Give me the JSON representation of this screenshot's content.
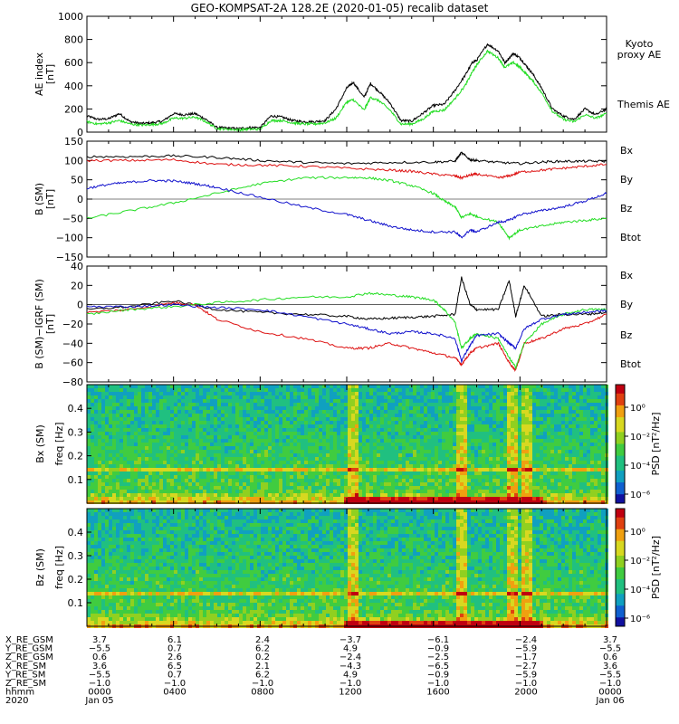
{
  "title": "GEO-KOMPSAT-2A 128.2E (2020-01-05) recalib dataset",
  "colors": {
    "black": "#000000",
    "green": "#22dd22",
    "red": "#dd1111",
    "blue": "#1111cc"
  },
  "chart_data": [
    {
      "type": "line",
      "id": "ae",
      "ylabel": [
        "AE index",
        "[nT]"
      ],
      "ylim": [
        0,
        1000
      ],
      "yticks": [
        "0",
        "200",
        "400",
        "600",
        "800",
        "1000"
      ],
      "legend": {
        "kyoto": [
          "Kyoto",
          "proxy AE"
        ],
        "themis": "Themis AE"
      },
      "xlim": [
        0,
        24
      ],
      "series": [
        {
          "name": "Themis AE",
          "color": "black",
          "x": [
            0,
            0.5,
            1,
            1.5,
            2,
            2.5,
            3,
            3.5,
            4,
            4.5,
            5,
            5.5,
            6,
            6.5,
            7,
            7.5,
            8,
            8.5,
            9,
            9.5,
            10,
            10.5,
            11,
            11.5,
            12,
            12.3,
            12.8,
            13.1,
            13.5,
            14,
            14.5,
            15,
            15.5,
            16,
            16.5,
            17,
            17.5,
            17.8,
            18,
            18.5,
            19,
            19.3,
            19.7,
            20,
            20.3,
            20.6,
            21,
            21.5,
            22,
            22.5,
            23,
            23.5,
            24
          ],
          "y": [
            140,
            110,
            115,
            160,
            90,
            75,
            80,
            95,
            160,
            150,
            160,
            110,
            40,
            35,
            30,
            40,
            40,
            140,
            130,
            100,
            90,
            90,
            100,
            200,
            380,
            430,
            300,
            420,
            350,
            250,
            100,
            95,
            160,
            230,
            240,
            360,
            500,
            600,
            620,
            760,
            700,
            600,
            680,
            640,
            570,
            500,
            380,
            200,
            140,
            110,
            200,
            150,
            200
          ]
        },
        {
          "name": "Kyoto proxy AE",
          "color": "green",
          "x": [
            0,
            0.5,
            1,
            1.5,
            2,
            2.5,
            3,
            3.5,
            4,
            4.5,
            5,
            5.5,
            6,
            6.5,
            7,
            7.5,
            8,
            8.5,
            9,
            9.5,
            10,
            10.5,
            11,
            11.5,
            12,
            12.3,
            12.8,
            13.1,
            13.5,
            14,
            14.5,
            15,
            15.5,
            16,
            16.5,
            17,
            17.5,
            17.8,
            18,
            18.5,
            19,
            19.3,
            19.7,
            20,
            20.3,
            20.6,
            21,
            21.5,
            22,
            22.5,
            23,
            23.5,
            24
          ],
          "y": [
            90,
            70,
            80,
            100,
            70,
            60,
            65,
            75,
            120,
            120,
            130,
            90,
            30,
            25,
            20,
            25,
            25,
            100,
            100,
            80,
            70,
            70,
            80,
            120,
            260,
            280,
            190,
            300,
            270,
            190,
            70,
            70,
            110,
            180,
            190,
            290,
            410,
            520,
            580,
            700,
            640,
            560,
            600,
            560,
            500,
            440,
            340,
            180,
            110,
            90,
            150,
            120,
            160
          ]
        }
      ]
    },
    {
      "type": "line",
      "id": "bsm",
      "ylabel": [
        "B (SM)",
        "[nT]"
      ],
      "ylim": [
        -150,
        150
      ],
      "yticks": [
        "−150",
        "−100",
        "−50",
        "0",
        "50",
        "100",
        "150"
      ],
      "legend": [
        "Bx",
        "By",
        "Bz",
        "Btot"
      ],
      "xlim": [
        0,
        24
      ],
      "series": [
        {
          "name": "Btot",
          "color": "black",
          "x": [
            0,
            2,
            4,
            6,
            8,
            10,
            12,
            14,
            16,
            17,
            17.3,
            17.7,
            18,
            19,
            20,
            21,
            22,
            23,
            24
          ],
          "y": [
            110,
            110,
            112,
            108,
            100,
            95,
            92,
            95,
            96,
            98,
            120,
            102,
            100,
            95,
            92,
            96,
            98,
            98,
            98
          ]
        },
        {
          "name": "Bz",
          "color": "red",
          "x": [
            0,
            2,
            4,
            6,
            8,
            10,
            12,
            14,
            15,
            16,
            17,
            17.3,
            17.7,
            18,
            19,
            19.5,
            20,
            21,
            22,
            23,
            24
          ],
          "y": [
            100,
            100,
            102,
            90,
            88,
            85,
            80,
            75,
            72,
            65,
            60,
            55,
            62,
            65,
            55,
            60,
            70,
            75,
            80,
            85,
            90
          ]
        },
        {
          "name": "By",
          "color": "green",
          "x": [
            0,
            2,
            4,
            6,
            8,
            10,
            12,
            13,
            14,
            15,
            16,
            16.5,
            17,
            17.3,
            17.7,
            18,
            19,
            19.5,
            20,
            21,
            22,
            23,
            24
          ],
          "y": [
            -50,
            -30,
            -10,
            15,
            40,
            55,
            56,
            55,
            48,
            35,
            15,
            -5,
            -20,
            -48,
            -38,
            -45,
            -60,
            -100,
            -80,
            -70,
            -60,
            -55,
            -50
          ]
        },
        {
          "name": "Bx",
          "color": "blue",
          "x": [
            0,
            1,
            2,
            3,
            4,
            5,
            6,
            8,
            10,
            12,
            13,
            14,
            15,
            16,
            17,
            17.3,
            17.7,
            18,
            19,
            19.5,
            20,
            21,
            22,
            23,
            24
          ],
          "y": [
            28,
            38,
            44,
            48,
            47,
            40,
            30,
            5,
            -20,
            -40,
            -55,
            -70,
            -80,
            -85,
            -85,
            -100,
            -80,
            -85,
            -60,
            -55,
            -40,
            -30,
            -20,
            -5,
            15
          ]
        }
      ]
    },
    {
      "type": "line",
      "id": "bigrf",
      "ylabel": [
        "B (SM)−IGRF (SM)",
        "[nT]"
      ],
      "ylim": [
        -80,
        40
      ],
      "yticks": [
        "−80",
        "−60",
        "−40",
        "−20",
        "0",
        "20",
        "40"
      ],
      "legend": [
        "Bx",
        "By",
        "Bz",
        "Btot"
      ],
      "xlim": [
        0,
        24
      ],
      "series": [
        {
          "name": "Btot",
          "color": "black",
          "x": [
            0,
            2,
            4,
            6,
            8,
            10,
            12,
            13,
            14,
            15,
            16,
            17,
            17.3,
            17.7,
            18,
            19,
            19.5,
            19.8,
            20.2,
            21,
            22,
            23,
            24
          ],
          "y": [
            -5,
            -2,
            4,
            -5,
            -8,
            -10,
            -12,
            -15,
            -14,
            -13,
            -12,
            -10,
            28,
            0,
            -5,
            -5,
            25,
            -12,
            20,
            -12,
            -10,
            -10,
            -8
          ]
        },
        {
          "name": "Bz",
          "color": "red",
          "x": [
            0,
            2,
            4,
            5,
            6,
            8,
            10,
            12,
            13,
            14,
            15,
            16,
            17,
            17.3,
            17.7,
            18,
            19,
            19.5,
            19.8,
            20.2,
            21,
            22,
            23,
            24
          ],
          "y": [
            -8,
            -5,
            2,
            0,
            -15,
            -28,
            -35,
            -45,
            -45,
            -40,
            -45,
            -50,
            -55,
            -62,
            -50,
            -45,
            -40,
            -60,
            -68,
            -40,
            -35,
            -25,
            -20,
            -10
          ]
        },
        {
          "name": "By",
          "color": "green",
          "x": [
            0,
            2,
            4,
            6,
            8,
            10,
            12,
            13,
            14,
            15,
            16,
            16.5,
            17,
            17.3,
            17.7,
            18,
            19,
            19.5,
            19.8,
            20.2,
            21,
            22,
            23,
            24
          ],
          "y": [
            -10,
            -5,
            -2,
            2,
            5,
            8,
            8,
            12,
            10,
            8,
            5,
            -5,
            -18,
            -45,
            -35,
            -30,
            -35,
            -55,
            -65,
            -40,
            -20,
            -10,
            -5,
            -5
          ]
        },
        {
          "name": "Bx",
          "color": "blue",
          "x": [
            0,
            2,
            4,
            6,
            8,
            10,
            12,
            13,
            14,
            15,
            16,
            17,
            17.3,
            17.7,
            18,
            19,
            19.5,
            19.8,
            20.2,
            21,
            22,
            23,
            24
          ],
          "y": [
            -2,
            -2,
            0,
            -3,
            -5,
            -12,
            -20,
            -25,
            -30,
            -28,
            -30,
            -35,
            -58,
            -42,
            -32,
            -30,
            -40,
            -45,
            -25,
            -15,
            -10,
            -8,
            -6
          ]
        }
      ]
    },
    {
      "type": "heatmap",
      "id": "bxspec",
      "ylabel": [
        "Bx (SM)",
        "freq [Hz]"
      ],
      "ylim": [
        0,
        0.5
      ],
      "yticks": [
        "0.1",
        "0.2",
        "0.3",
        "0.4"
      ],
      "colorbar": {
        "label": "PSD [nT²/Hz]",
        "ticks": [
          "10⁰",
          "10⁻²",
          "10⁻⁴",
          "10⁻⁶"
        ]
      },
      "bands": [
        0.15,
        0.17
      ],
      "bursts": [
        12.2,
        17.3,
        19.6,
        20.2
      ]
    },
    {
      "type": "heatmap",
      "id": "bzspec",
      "ylabel": [
        "Bz (SM)",
        "freq [Hz]"
      ],
      "ylim": [
        0,
        0.5
      ],
      "yticks": [
        "0.1",
        "0.2",
        "0.3",
        "0.4"
      ],
      "colorbar": {
        "label": "PSD [nT²/Hz]",
        "ticks": [
          "10⁰",
          "10⁻²",
          "10⁻⁴",
          "10⁻⁶"
        ]
      },
      "bands": [
        0.15,
        0.17
      ],
      "bursts": [
        12.2,
        17.3,
        19.6,
        20.2
      ]
    }
  ],
  "orbit_table": {
    "row_labels": [
      "X_RE_GSM",
      "Y_RE_GSM",
      "Z_RE_GSM",
      "X_RE_SM",
      "Y_RE_SM",
      "Z_RE_SM",
      "hhmm",
      "2020"
    ],
    "rows": [
      [
        "3.7",
        "6.1",
        "2.4",
        "−3.7",
        "−6.1",
        "−2.4",
        "3.7"
      ],
      [
        "−5.5",
        "0.7",
        "6.2",
        "4.9",
        "−0.9",
        "−5.9",
        "−5.5"
      ],
      [
        "0.6",
        "2.6",
        "0.2",
        "−2.4",
        "−2.5",
        "−1.7",
        "0.6"
      ],
      [
        "3.6",
        "6.5",
        "2.1",
        "−4.3",
        "−6.5",
        "−2.7",
        "3.6"
      ],
      [
        "−5.5",
        "0.7",
        "6.2",
        "4.9",
        "−0.9",
        "−5.9",
        "−5.5"
      ],
      [
        "−1.0",
        "−1.0",
        "−1.0",
        "−1.0",
        "−1.0",
        "−1.0",
        "−1.0"
      ],
      [
        "0000",
        "0400",
        "0800",
        "1200",
        "1600",
        "2000",
        "0000"
      ],
      [
        "Jan 05",
        "",
        "",
        "",
        "",
        "",
        "Jan 06"
      ]
    ]
  }
}
